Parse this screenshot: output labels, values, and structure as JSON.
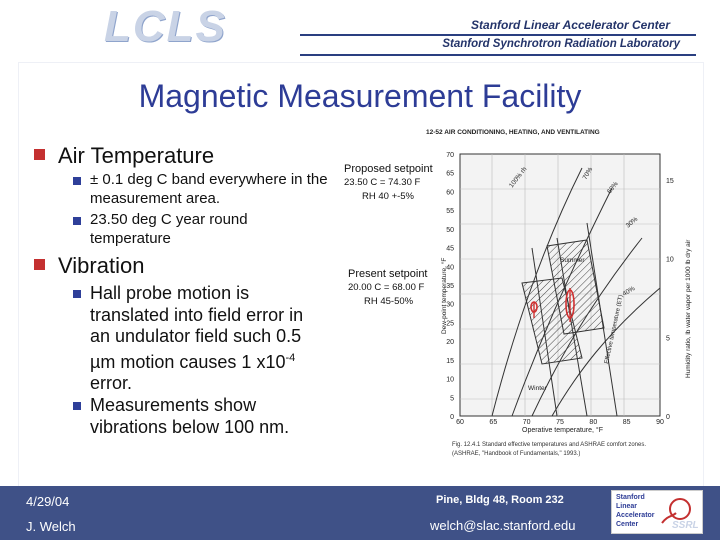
{
  "header": {
    "logo": "LCLS",
    "lab_line1": "Stanford Linear Accelerator Center",
    "lab_line2": "Stanford Synchrotron Radiation Laboratory"
  },
  "slide": {
    "title": "Magnetic Measurement Facility",
    "sections": [
      {
        "heading": "Air Temperature",
        "items": [
          [
            "± 0.1 deg C band everywhere in the",
            "measurement area."
          ],
          [
            "23.50 deg C year round",
            "temperature"
          ]
        ]
      },
      {
        "heading": "Vibration",
        "items": [
          [
            "Hall probe motion is",
            "translated into field error in",
            "an undulator field such 0.5",
            "µm motion causes 1 x10",
            "error."
          ],
          [
            "Measurements show",
            "vibrations below 100 nm."
          ]
        ],
        "superscript": "-4"
      }
    ]
  },
  "figure": {
    "header": "12-52   AIR CONDITIONING, HEATING, AND VENTILATING",
    "proposed_label": "Proposed setpoint",
    "proposed_line1": "23.50 C = 74.30 F",
    "proposed_line2": "RH 40 +-5%",
    "present_label": "Present setpoint",
    "present_line1": "20.00 C = 68.00 F",
    "present_line2": "RH 45-50%",
    "y_left_label": "Dew-point temperature, °F",
    "y_right_label": "Humidity ratio, lb water vapor per 1000 lb dry air",
    "x_label": "Operative temperature, °F",
    "caption_line1": "Fig. 12.4.1  Standard effective temperatures and ASHRAE comfort zones.",
    "caption_line2": "(ASHRAE, \"Handbook of Fundamentals,\" 1993.)",
    "x_ticks": [
      "60",
      "65",
      "70",
      "75",
      "80",
      "85",
      "90"
    ],
    "y_ticks": [
      "70",
      "65",
      "60",
      "55",
      "50",
      "45",
      "40",
      "35",
      "30",
      "25",
      "20",
      "15",
      "10",
      "5",
      "0"
    ],
    "right_ticks": [
      "15",
      "10",
      "5",
      "0"
    ],
    "curve_labels": [
      "100% rh",
      "60%",
      "40%",
      "30%",
      "70%",
      "Effective temperature (ET)",
      "Summer",
      "Winter"
    ]
  },
  "footer": {
    "date": "4/29/04",
    "author": "J. Welch",
    "location": "Pine, Bldg 48, Room 232",
    "email": "welch@slac.stanford.edu",
    "logo_lines": [
      "Stanford",
      "Linear",
      "Accelerator",
      "Center"
    ],
    "ssrl": "SSRL"
  },
  "colors": {
    "title": "#2d3c96",
    "bullet_l1": "#c43030",
    "bullet_l2": "#2e3f99",
    "footer_bg": "#3f5187"
  }
}
